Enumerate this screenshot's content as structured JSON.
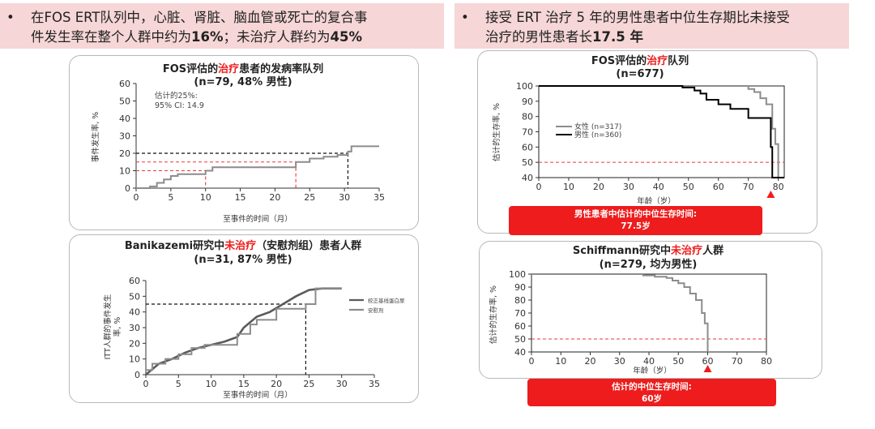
{
  "banners": {
    "left": {
      "bullet": "•",
      "line1": "在FOS ERT队列中，心脏、肾脏、脑血管或死亡的复合事",
      "line2_a": "件发生率在整个人群中约为",
      "line2_b": "16%",
      "line2_c": "；未治疗人群约为",
      "line2_d": "45%"
    },
    "right": {
      "bullet": "•",
      "line1": "接受 ERT 治疗 5 年的男性患者中位生存期比未接受",
      "line2_a": "治疗的男性患者长",
      "line2_b": "17.5 年"
    }
  },
  "panels": {
    "fos_treated": {
      "title_a": "FOS评估的",
      "title_hl": "治疗",
      "title_b": "患者的发病率队列",
      "subtitle": "(n=79, 48% 男性)",
      "ylabel": "事件发生率, %",
      "xlabel": "至事件的时间（月）",
      "note1": "估计的25%:",
      "note2": "95% CI: 14.9"
    },
    "banikazemi": {
      "title_a": "Banikazemi研究中",
      "title_hl": "未治疗",
      "title_b": "（安慰剂组）患者人群",
      "subtitle": "(n=31, 87% 男性)",
      "ylabel1": "ITT人群的事件发生",
      "ylabel2": "率, %",
      "xlabel": "至事件的时间（月）"
    },
    "fos_survival": {
      "title_a": "FOS评估的",
      "title_hl": "治疗",
      "title_b": "队列",
      "subtitle": "(n=677)",
      "ylabel": "估计的生存率, %",
      "xlabel": "年龄（岁）",
      "callout1": "男性患者中估计的中位生存时间:",
      "callout2": "77.5岁"
    },
    "schiffmann": {
      "title_a": "Schiffmann研究中",
      "title_hl": "未治疗",
      "title_b": "人群",
      "subtitle": "(n=279, 均为男性)",
      "ylabel": "估计的生存率, %",
      "xlabel": "年龄（岁）",
      "callout1": "估计的中位生存时间:",
      "callout2": "60岁"
    }
  },
  "colors": {
    "banner_bg": "#f6d6d6",
    "highlight_red": "#ee1c1c",
    "curve_gray": "#8c8c8c",
    "curve_dark": "#5a5a5a",
    "curve_black": "#000000",
    "dashed_red": "#e83a3a"
  },
  "chart_data": [
    {
      "id": "fos_treated",
      "type": "line",
      "title": "FOS评估的治疗患者的发病率队列",
      "subtitle": "(n=79, 48% 男性)",
      "xlabel": "至事件的时间（月）",
      "ylabel": "事件发生率, %",
      "xlim": [
        0,
        35
      ],
      "ylim": [
        0,
        60
      ],
      "xticks": [
        0,
        5,
        10,
        15,
        20,
        25,
        30,
        35
      ],
      "yticks": [
        0,
        10,
        20,
        30,
        40,
        50,
        60
      ],
      "series": [
        {
          "style": "step",
          "x": [
            0,
            2,
            3,
            4,
            5,
            6,
            8,
            10,
            11,
            23,
            25,
            27,
            29,
            30.5,
            31,
            35
          ],
          "y": [
            0,
            1,
            3,
            5,
            7,
            8,
            8,
            10,
            12,
            15,
            17,
            18,
            19,
            21,
            24,
            24
          ]
        }
      ],
      "reference_lines": {
        "black_y": 20,
        "black_x": 30.5,
        "red_y": [
          10,
          15
        ],
        "red_x": [
          10,
          23
        ]
      },
      "annotation": [
        "估计的25%:",
        "95% CI: 14.9"
      ]
    },
    {
      "id": "banikazemi",
      "type": "line",
      "title": "Banikazemi研究中未治疗（安慰剂组）患者人群",
      "subtitle": "(n=31, 87% 男性)",
      "xlabel": "至事件的时间（月）",
      "ylabel": "ITT人群的事件发生率, %",
      "xlim": [
        0,
        35
      ],
      "ylim": [
        0,
        60
      ],
      "xticks": [
        0,
        5,
        10,
        15,
        20,
        25,
        30,
        35
      ],
      "yticks": [
        0,
        10,
        20,
        30,
        40,
        50,
        60
      ],
      "series": [
        {
          "legend": "校正基线蛋白尿",
          "style": "line",
          "x": [
            0,
            2,
            4,
            6,
            8,
            10,
            12,
            14,
            15,
            17,
            19,
            21,
            23,
            25,
            27,
            30
          ],
          "y": [
            0,
            7,
            10,
            14,
            17,
            19,
            21,
            24,
            30,
            37,
            40,
            45,
            50,
            54,
            55,
            55
          ]
        },
        {
          "legend": "安慰剂",
          "style": "step",
          "x": [
            0,
            1,
            3,
            5,
            7,
            9,
            13,
            14,
            16,
            17,
            20,
            24.5,
            26,
            30
          ],
          "y": [
            3,
            7,
            10,
            13,
            17,
            19,
            19,
            26,
            32,
            35,
            42,
            45,
            55,
            55
          ]
        }
      ],
      "reference_lines": {
        "black_y": 45,
        "black_x": 24.5
      }
    },
    {
      "id": "fos_survival",
      "type": "line",
      "title": "FOS评估的治疗队列",
      "subtitle": "(n=677)",
      "xlabel": "年龄（岁）",
      "ylabel": "估计的生存率, %",
      "xlim": [
        0,
        82
      ],
      "ylim": [
        40,
        100
      ],
      "xticks": [
        0,
        10,
        20,
        30,
        40,
        50,
        60,
        70,
        80
      ],
      "yticks": [
        40,
        50,
        60,
        70,
        80,
        90,
        100
      ],
      "series": [
        {
          "name": "女性 (n=317)",
          "style": "step",
          "x": [
            0,
            40,
            55,
            65,
            70,
            72,
            74,
            76,
            78,
            79,
            80,
            82
          ],
          "y": [
            100,
            100,
            100,
            100,
            98,
            96,
            92,
            88,
            72,
            62,
            40,
            40
          ]
        },
        {
          "name": "男性 (n=360)",
          "style": "step",
          "x": [
            0,
            40,
            48,
            52,
            54,
            56,
            60,
            62,
            64,
            66,
            70,
            77,
            77.5,
            78,
            79,
            82
          ],
          "y": [
            100,
            100,
            99,
            97,
            95,
            91,
            88,
            88,
            85,
            85,
            79,
            79,
            60,
            40,
            40,
            40
          ]
        }
      ],
      "reference_lines": {
        "red_y": 50,
        "marker_x": 77.5
      }
    },
    {
      "id": "schiffmann",
      "type": "line",
      "title": "Schiffmann研究中未治疗人群",
      "subtitle": "(n=279, 均为男性)",
      "xlabel": "年龄（岁）",
      "ylabel": "估计的生存率, %",
      "xlim": [
        0,
        80
      ],
      "ylim": [
        40,
        100
      ],
      "xticks": [
        0,
        10,
        20,
        30,
        40,
        50,
        60,
        70,
        80
      ],
      "yticks": [
        40,
        50,
        60,
        70,
        80,
        90,
        100
      ],
      "series": [
        {
          "style": "step",
          "x": [
            0,
            30,
            38,
            42,
            46,
            48,
            50,
            52,
            54,
            56,
            58,
            59,
            60
          ],
          "y": [
            100,
            100,
            99,
            98,
            97,
            95,
            93,
            90,
            85,
            80,
            70,
            62,
            40
          ]
        }
      ],
      "reference_lines": {
        "red_y": 50,
        "marker_x": 60
      }
    }
  ]
}
